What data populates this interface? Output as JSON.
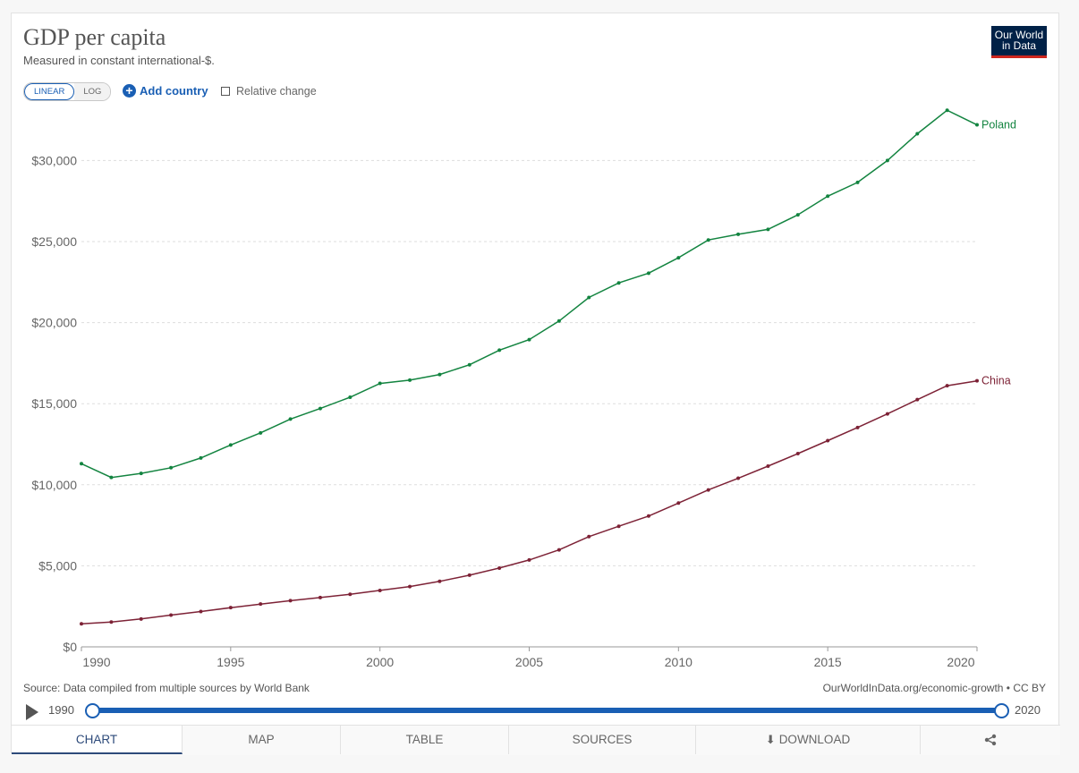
{
  "header": {
    "title": "GDP per capita",
    "subtitle": "Measured in constant international-$.",
    "logo_line1": "Our World",
    "logo_line2": "in Data"
  },
  "controls": {
    "linear_label": "LINEAR",
    "log_label": "LOG",
    "add_country_label": "Add country",
    "add_icon": "+",
    "relative_change_label": "Relative change"
  },
  "chart_data": {
    "type": "line",
    "title": "GDP per capita",
    "subtitle": "Measured in constant international-$.",
    "xlabel": "",
    "ylabel": "",
    "xlim": [
      1990,
      2020
    ],
    "ylim": [
      0,
      33500
    ],
    "grid": true,
    "x": [
      1990,
      1991,
      1992,
      1993,
      1994,
      1995,
      1996,
      1997,
      1998,
      1999,
      2000,
      2001,
      2002,
      2003,
      2004,
      2005,
      2006,
      2007,
      2008,
      2009,
      2010,
      2011,
      2012,
      2013,
      2014,
      2015,
      2016,
      2017,
      2018,
      2019,
      2020
    ],
    "y_ticks": [
      0,
      5000,
      10000,
      15000,
      20000,
      25000,
      30000
    ],
    "y_tick_labels": [
      "$0",
      "$5,000",
      "$10,000",
      "$15,000",
      "$20,000",
      "$25,000",
      "$30,000"
    ],
    "x_ticks": [
      1990,
      1995,
      2000,
      2005,
      2010,
      2015,
      2020
    ],
    "x_tick_labels": [
      "1990",
      "1995",
      "2000",
      "2005",
      "2010",
      "2015",
      "2020"
    ],
    "series": [
      {
        "name": "Poland",
        "color": "#138440",
        "values": [
          11300,
          10450,
          10700,
          11050,
          11650,
          12450,
          13200,
          14050,
          14700,
          15400,
          16250,
          16450,
          16800,
          17400,
          18300,
          18950,
          20100,
          21550,
          22450,
          23050,
          24000,
          25100,
          25450,
          25750,
          26650,
          27800,
          28650,
          30000,
          31650,
          33100,
          32200
        ]
      },
      {
        "name": "China",
        "color": "#7d2236",
        "values": [
          1420,
          1530,
          1720,
          1960,
          2180,
          2420,
          2640,
          2850,
          3040,
          3240,
          3480,
          3720,
          4040,
          4420,
          4860,
          5360,
          5980,
          6800,
          7440,
          8070,
          8870,
          9680,
          10400,
          11150,
          11920,
          12720,
          13530,
          14370,
          15250,
          16110,
          16410
        ]
      }
    ]
  },
  "footer": {
    "source": "Source: Data compiled from multiple sources by World Bank",
    "license": "OurWorldInData.org/economic-growth • CC BY"
  },
  "timeline": {
    "start_year": "1990",
    "end_year": "2020"
  },
  "tabs": {
    "chart": "CHART",
    "map": "MAP",
    "table": "TABLE",
    "sources": "SOURCES",
    "download": "DOWNLOAD"
  }
}
